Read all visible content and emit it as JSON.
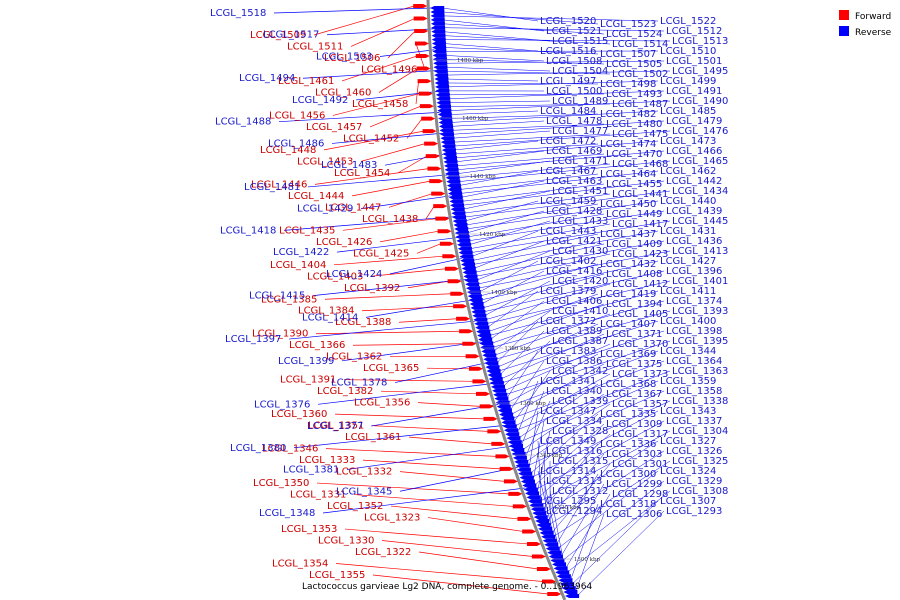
{
  "caption": "Lactococcus garvieae Lg2 DNA, complete genome. - 0..1963964",
  "legend": {
    "forward": "Forward",
    "reverse": "Reverse"
  },
  "colors": {
    "forward": "#ff0000",
    "reverse": "#0000ff",
    "label_forward": "#cc0000",
    "label_reverse": "#1a1acc",
    "arc": "#888888"
  },
  "ticks": [
    "1480 kbp",
    "1460 kbp",
    "1440 kbp",
    "1420 kbp",
    "1400 kbp",
    "1380 kbp",
    "1360 kbp",
    "1340 kbp",
    "1320 kbp",
    "1300 kbp"
  ],
  "forward_genes": [
    "LCGL_1509",
    "LCGL_1511",
    "LCGL_1506",
    "LCGL_1496",
    "LCGL_1461",
    "LCGL_1460",
    "LCGL_1458",
    "LCGL_1456",
    "LCGL_1457",
    "LCGL_1452",
    "LCGL_1448",
    "LCGL_1453",
    "LCGL_1454",
    "LCGL_1446",
    "LCGL_1444",
    "LCGL_1447",
    "LCGL_1438",
    "LCGL_1435",
    "LCGL_1426",
    "LCGL_1425",
    "LCGL_1404",
    "LCGL_1403",
    "LCGL_1392",
    "LCGL_1385",
    "LCGL_1384",
    "LCGL_1388",
    "LCGL_1390",
    "LCGL_1366",
    "LCGL_1362",
    "LCGL_1365",
    "LCGL_1391",
    "LCGL_1382",
    "LCGL_1356",
    "LCGL_1360",
    "LCGL_1351",
    "LCGL_1361",
    "LCGL_1346",
    "LCGL_1333",
    "LCGL_1332",
    "LCGL_1350",
    "LCGL_1331",
    "LCGL_1352",
    "LCGL_1323",
    "LCGL_1353",
    "LCGL_1330",
    "LCGL_1322",
    "LCGL_1354",
    "LCGL_1355"
  ],
  "reverse_genes_left": [
    "LCGL_1518",
    "LCGL_1517",
    "LCGL_1503",
    "LCGL_1494",
    "LCGL_1492",
    "LCGL_1488",
    "LCGL_1486",
    "LCGL_1483",
    "LCGL_1481",
    "LCGL_1429",
    "LCGL_1418",
    "LCGL_1422",
    "LCGL_1424",
    "LCGL_1415",
    "LCGL_1414",
    "LCGL_1397",
    "LCGL_1399",
    "LCGL_1378",
    "LCGL_1376",
    "LCGL_1377",
    "LCGL_1380",
    "LCGL_1381",
    "LCGL_1345",
    "LCGL_1348"
  ],
  "reverse_genes_right": [
    "LCGL_1520",
    "LCGL_1523",
    "LCGL_1522",
    "LCGL_1521",
    "LCGL_1524",
    "LCGL_1512",
    "LCGL_1515",
    "LCGL_1514",
    "LCGL_1513",
    "LCGL_1516",
    "LCGL_1507",
    "LCGL_1510",
    "LCGL_1508",
    "LCGL_1505",
    "LCGL_1501",
    "LCGL_1504",
    "LCGL_1502",
    "LCGL_1495",
    "LCGL_1497",
    "LCGL_1498",
    "LCGL_1499",
    "LCGL_1500",
    "LCGL_1493",
    "LCGL_1491",
    "LCGL_1489",
    "LCGL_1487",
    "LCGL_1490",
    "LCGL_1484",
    "LCGL_1482",
    "LCGL_1485",
    "LCGL_1478",
    "LCGL_1480",
    "LCGL_1479",
    "LCGL_1477",
    "LCGL_1475",
    "LCGL_1476",
    "LCGL_1472",
    "LCGL_1474",
    "LCGL_1473",
    "LCGL_1469",
    "LCGL_1470",
    "LCGL_1466",
    "LCGL_1471",
    "LCGL_1468",
    "LCGL_1465",
    "LCGL_1467",
    "LCGL_1464",
    "LCGL_1462",
    "LCGL_1463",
    "LCGL_1455",
    "LCGL_1442",
    "LCGL_1451",
    "LCGL_1441",
    "LCGL_1434",
    "LCGL_1459",
    "LCGL_1450",
    "LCGL_1440",
    "LCGL_1428",
    "LCGL_1449",
    "LCGL_1439",
    "LCGL_1433",
    "LCGL_1417",
    "LCGL_1445",
    "LCGL_1443",
    "LCGL_1437",
    "LCGL_1431",
    "LCGL_1421",
    "LCGL_1409",
    "LCGL_1436",
    "LCGL_1430",
    "LCGL_1423",
    "LCGL_1413",
    "LCGL_1402",
    "LCGL_1432",
    "LCGL_1427",
    "LCGL_1416",
    "LCGL_1408",
    "LCGL_1396",
    "LCGL_1420",
    "LCGL_1412",
    "LCGL_1401",
    "LCGL_1379",
    "LCGL_1419",
    "LCGL_1411",
    "LCGL_1406",
    "LCGL_1394",
    "LCGL_1374",
    "LCGL_1410",
    "LCGL_1405",
    "LCGL_1393",
    "LCGL_1372",
    "LCGL_1407",
    "LCGL_1400",
    "LCGL_1389",
    "LCGL_1371",
    "LCGL_1398",
    "LCGL_1387",
    "LCGL_1370",
    "LCGL_1395",
    "LCGL_1383",
    "LCGL_1369",
    "LCGL_1344",
    "LCGL_1386",
    "LCGL_1375",
    "LCGL_1364",
    "LCGL_1342",
    "LCGL_1373",
    "LCGL_1363",
    "LCGL_1341",
    "LCGL_1368",
    "LCGL_1359",
    "LCGL_1340",
    "LCGL_1367",
    "LCGL_1358",
    "LCGL_1339",
    "LCGL_1357",
    "LCGL_1338",
    "LCGL_1347",
    "LCGL_1335",
    "LCGL_1343",
    "LCGL_1334",
    "LCGL_1309",
    "LCGL_1337",
    "LCGL_1328",
    "LCGL_1317",
    "LCGL_1304",
    "LCGL_1349",
    "LCGL_1336",
    "LCGL_1327",
    "LCGL_1316",
    "LCGL_1303",
    "LCGL_1326",
    "LCGL_1315",
    "LCGL_1301",
    "LCGL_1325",
    "LCGL_1314",
    "LCGL_1300",
    "LCGL_1324",
    "LCGL_1313",
    "LCGL_1299",
    "LCGL_1329",
    "LCGL_1312",
    "LCGL_1298",
    "LCGL_1308",
    "LCGL_1295",
    "LCGL_1318",
    "LCGL_1307",
    "LCGL_1294",
    "LCGL_1306",
    "LCGL_1293"
  ]
}
